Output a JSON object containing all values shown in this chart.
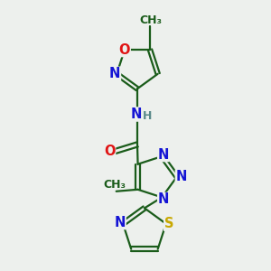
{
  "bg_color": "#edf0ed",
  "atom_colors": {
    "C": "#1a5c1a",
    "N": "#1414d4",
    "O": "#e01414",
    "S": "#c8a800",
    "H": "#5a8a8a"
  },
  "line_color": "#1a5c1a",
  "bond_width": 1.6,
  "font_size": 10.5,
  "figsize": [
    3.0,
    3.0
  ],
  "dpi": 100
}
